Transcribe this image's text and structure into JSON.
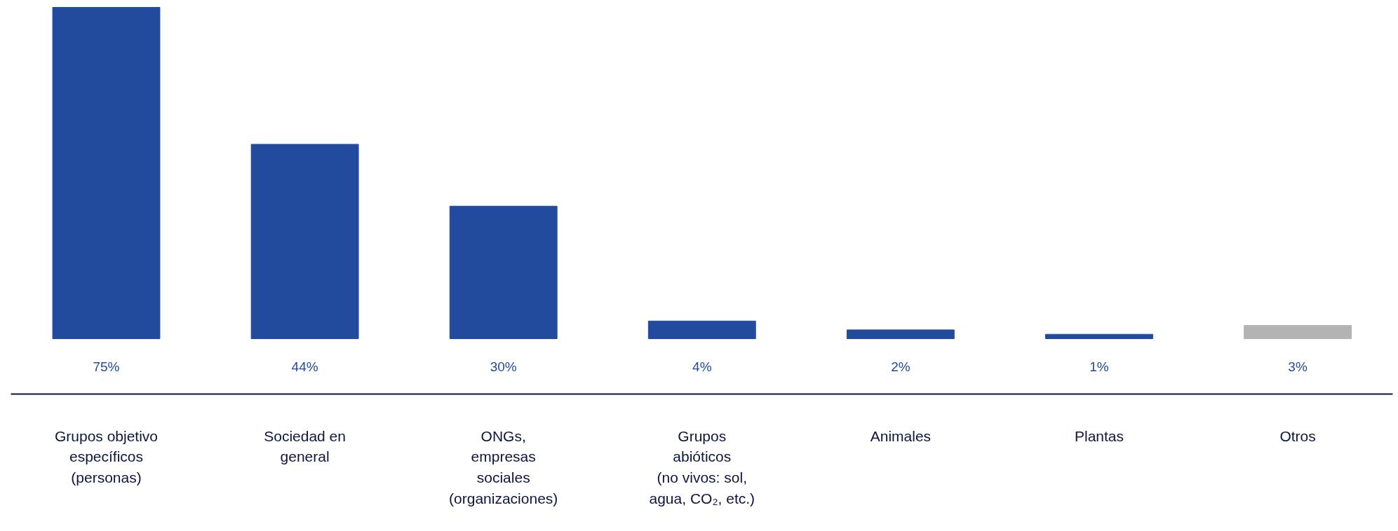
{
  "chart_data": {
    "type": "bar",
    "categories": [
      "Grupos objetivo\nespecíficos\n(personas)",
      "Sociedad en\ngeneral",
      "ONGs,\nempresas\nsociales\n(organizaciones)",
      "Grupos\nabióticos\n(no vivos: sol,\nagua, CO₂, etc.)",
      "Animales",
      "Plantas",
      "Otros"
    ],
    "values": [
      75,
      44,
      30,
      4,
      2,
      1,
      3
    ],
    "colors": [
      "#224b9e",
      "#224b9e",
      "#224b9e",
      "#224b9e",
      "#224b9e",
      "#224b9e",
      "#b3b3b3"
    ],
    "value_labels": [
      "75%",
      "44%",
      "30%",
      "4%",
      "2%",
      "1%",
      "3%"
    ],
    "grid": false
  }
}
